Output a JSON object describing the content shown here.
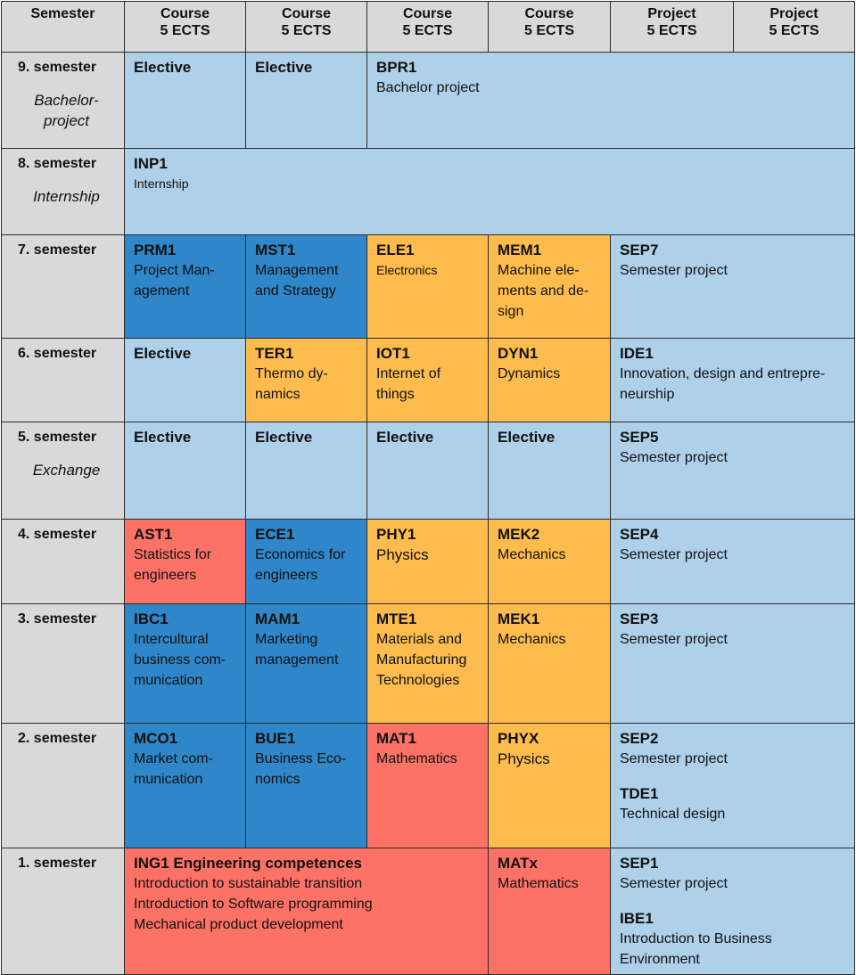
{
  "header": {
    "semester": "Semester",
    "columns": [
      {
        "line1": "Course",
        "line2": "5 ECTS"
      },
      {
        "line1": "Course",
        "line2": "5 ECTS"
      },
      {
        "line1": "Course",
        "line2": "5 ECTS"
      },
      {
        "line1": "Course",
        "line2": "5 ECTS"
      },
      {
        "line1": "Project",
        "line2": "5 ECTS"
      },
      {
        "line1": "Project",
        "line2": "5 ECTS"
      }
    ]
  },
  "rows": [
    {
      "semester": "9. semester",
      "subtitle": "Bachelor-\nproject",
      "cells": [
        {
          "code": "Elective",
          "text": ""
        },
        {
          "code": "Elective",
          "text": ""
        },
        {
          "code": "BPR1",
          "text": "Bachelor project"
        }
      ]
    },
    {
      "semester": "8. semester",
      "subtitle": "Internship",
      "cells": [
        {
          "code": "INP1",
          "text": "Internship"
        }
      ]
    },
    {
      "semester": "7. semester",
      "subtitle": "",
      "cells": [
        {
          "code": "PRM1",
          "text": "Project Man-\nagement"
        },
        {
          "code": "MST1",
          "text": "Management\nand Strategy"
        },
        {
          "code": "ELE1",
          "text": "Electronics"
        },
        {
          "code": "MEM1",
          "text": "Machine ele-\nments and de-\nsign"
        },
        {
          "code": "SEP7",
          "text": "Semester project"
        }
      ]
    },
    {
      "semester": "6. semester",
      "subtitle": "",
      "cells": [
        {
          "code": "Elective",
          "text": ""
        },
        {
          "code": "TER1",
          "text": "Thermo dy-\nnamics"
        },
        {
          "code": "IOT1",
          "text": "Internet of\nthings"
        },
        {
          "code": "DYN1",
          "text": "Dynamics"
        },
        {
          "code": "IDE1",
          "text": "Innovation, design and entrepre-\nneurship"
        }
      ]
    },
    {
      "semester": "5. semester",
      "subtitle": "Exchange",
      "cells": [
        {
          "code": "Elective",
          "text": ""
        },
        {
          "code": "Elective",
          "text": ""
        },
        {
          "code": "Elective",
          "text": ""
        },
        {
          "code": "Elective",
          "text": ""
        },
        {
          "code": "SEP5",
          "text": "Semester project"
        }
      ]
    },
    {
      "semester": "4. semester",
      "subtitle": "",
      "cells": [
        {
          "code": "AST1",
          "text": "Statistics for\nengineers"
        },
        {
          "code": "ECE1",
          "text": "Economics for\nengineers"
        },
        {
          "code": "PHY1",
          "text": "Physics"
        },
        {
          "code": "MEK2",
          "text": "Mechanics"
        },
        {
          "code": "SEP4",
          "text": "Semester project"
        }
      ]
    },
    {
      "semester": "3. semester",
      "subtitle": "",
      "cells": [
        {
          "code": "IBC1",
          "text": "Intercultural\nbusiness com-\nmunication"
        },
        {
          "code": "MAM1",
          "text": "Marketing\nmanagement"
        },
        {
          "code": "MTE1",
          "text": "Materials and\nManufacturing\nTechnologies"
        },
        {
          "code": "MEK1",
          "text": "Mechanics"
        },
        {
          "code": "SEP3",
          "text": "Semester project"
        }
      ]
    },
    {
      "semester": "2. semester",
      "subtitle": "",
      "cells": [
        {
          "code": "MCO1",
          "text": "Market com-\nmunication"
        },
        {
          "code": "BUE1",
          "text": "Business Eco-\nnomics"
        },
        {
          "code": "MAT1",
          "text": "Mathematics"
        },
        {
          "code": "PHYX",
          "text": "Physics"
        },
        {
          "code": "SEP2",
          "text": "Semester project",
          "code2": "TDE1",
          "text2": "Technical design"
        }
      ]
    },
    {
      "semester": "1. semester",
      "subtitle": "",
      "cells": [
        {
          "code": "ING1 Engineering competences",
          "text": "Introduction to sustainable transition\nIntroduction to Software programming\nMechanical product development"
        },
        {
          "code": "MATx",
          "text": "Mathematics"
        },
        {
          "code": "SEP1",
          "text": "Semester project",
          "code2": "IBE1",
          "text2": "Introduction to Business\nEnvironment"
        }
      ]
    }
  ],
  "colors": {
    "light_blue": "#aed0e9",
    "dark_blue": "#2f86c8",
    "orange": "#fdbc4d",
    "red": "#fc7266",
    "grey": "#d9d9d9"
  }
}
